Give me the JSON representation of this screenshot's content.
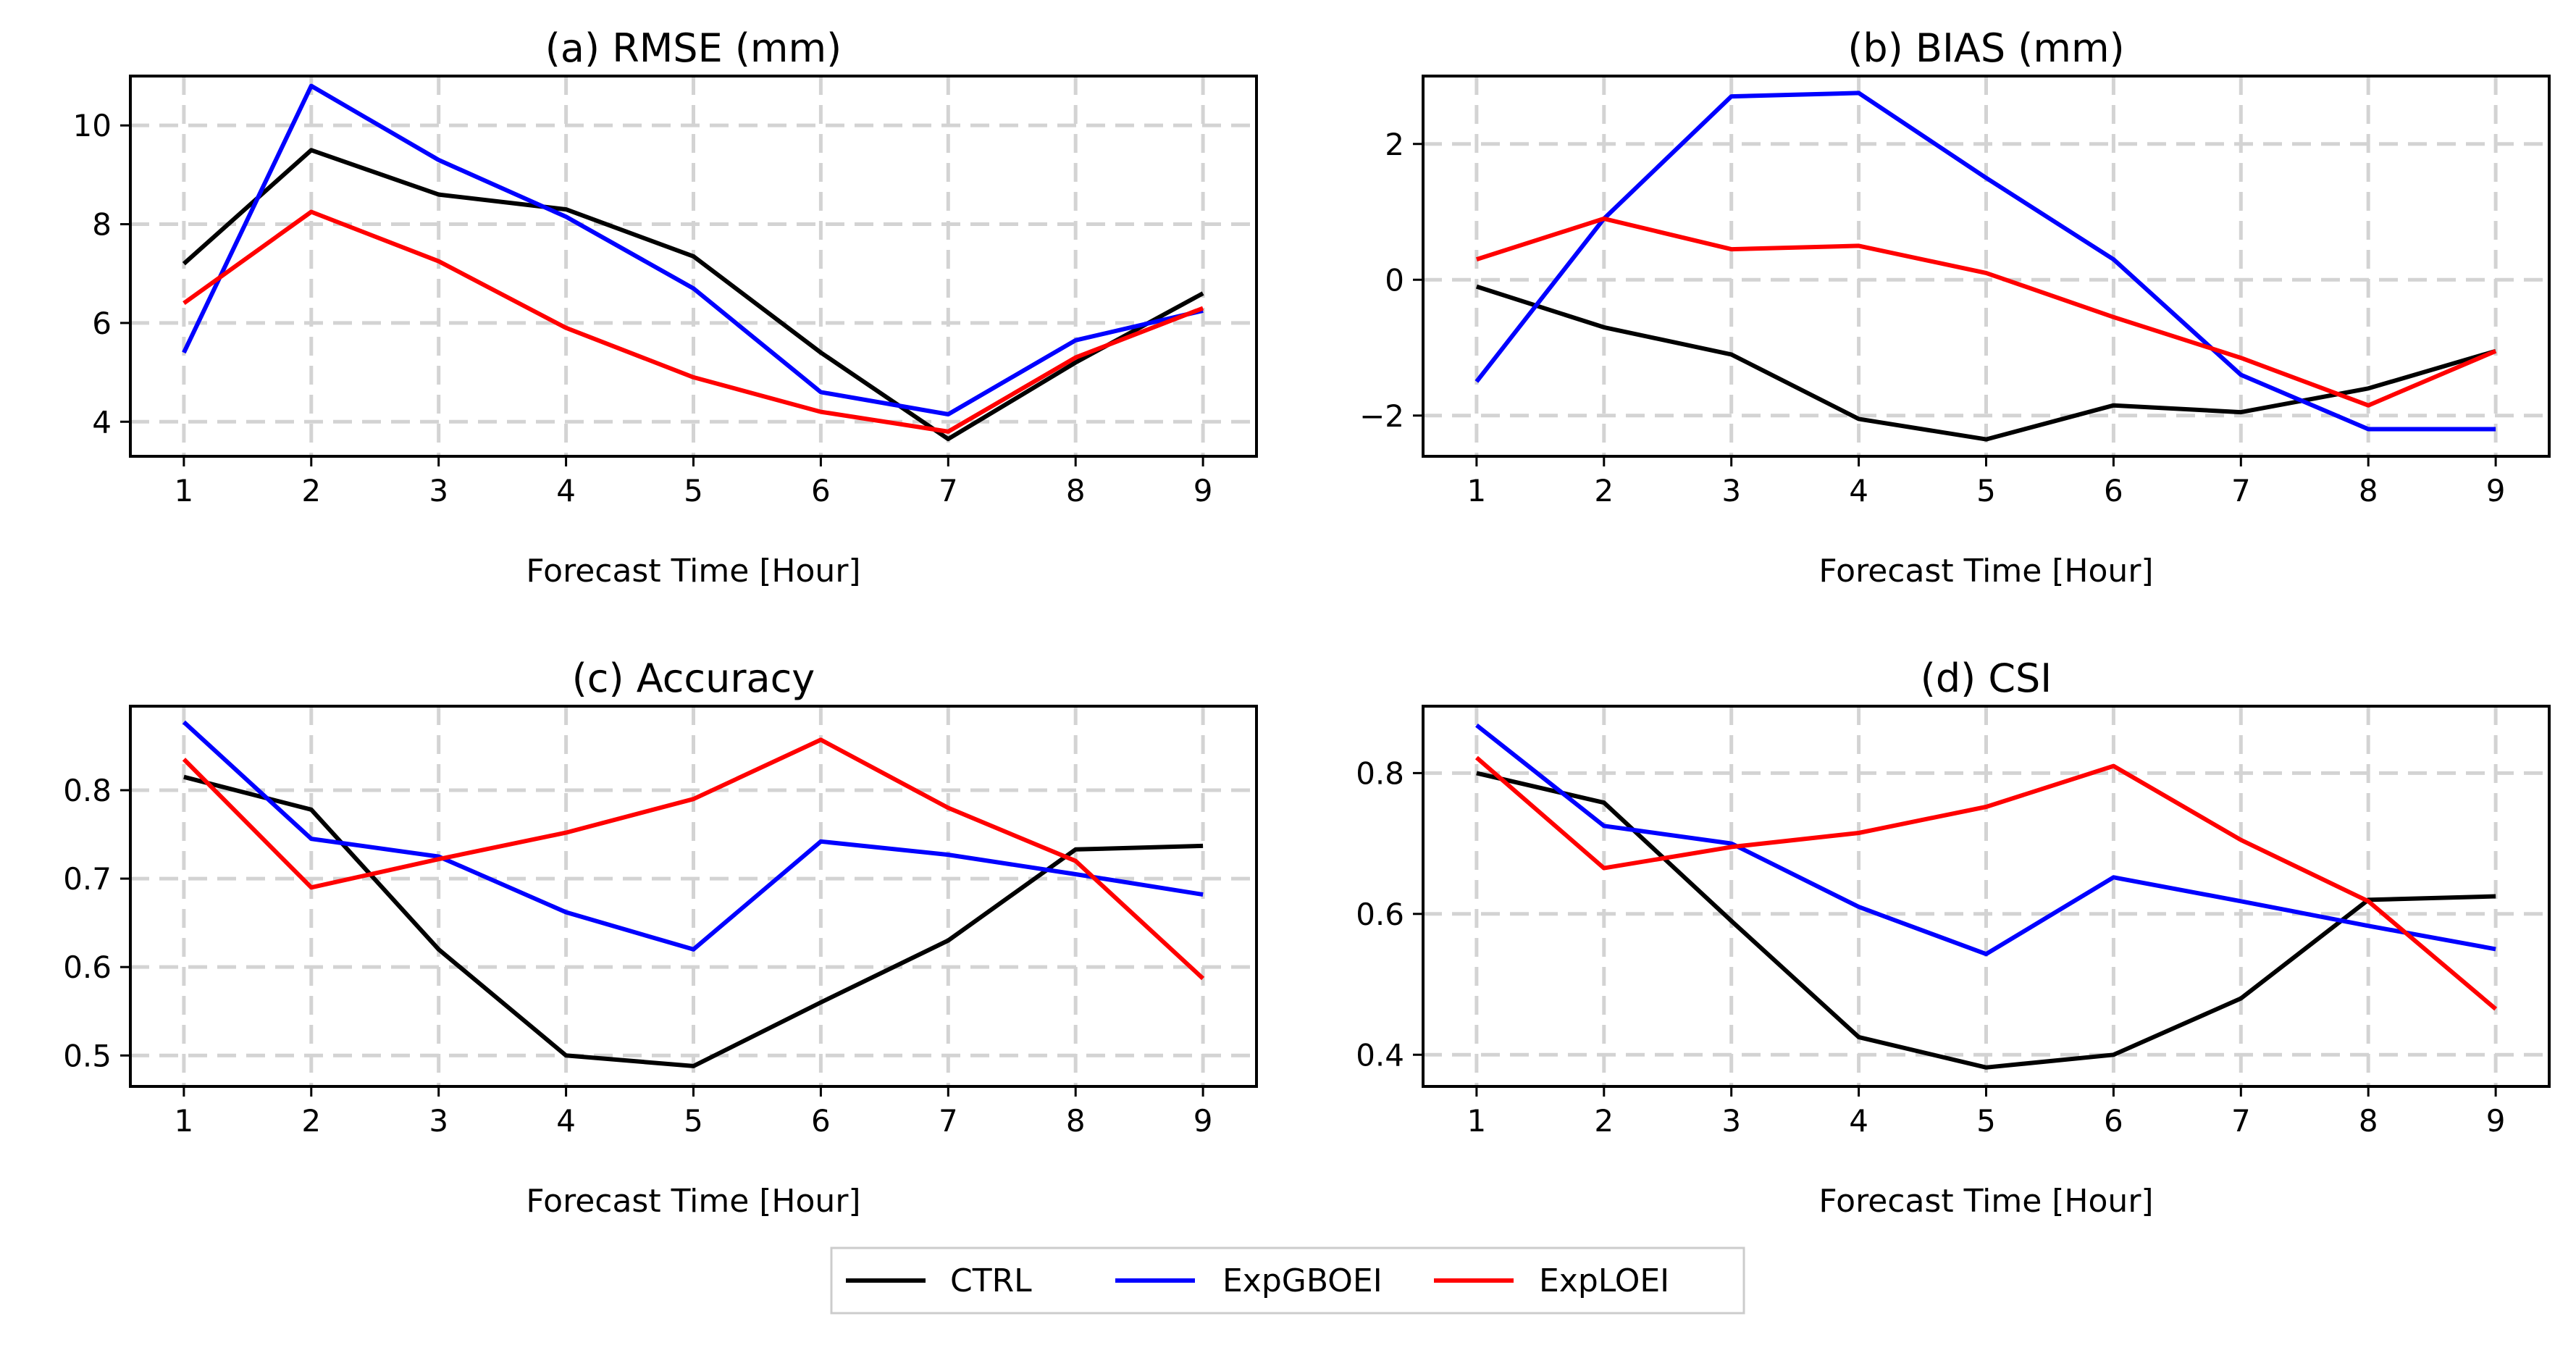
{
  "chart_data": [
    {
      "type": "line",
      "title": "(a) RMSE (mm)",
      "xlabel": "Forecast Time [Hour]",
      "ylabel": "",
      "x": [
        1,
        2,
        3,
        4,
        5,
        6,
        7,
        8,
        9
      ],
      "xticks": [
        "1",
        "2",
        "3",
        "4",
        "5",
        "6",
        "7",
        "8",
        "9"
      ],
      "yticks": [
        4,
        6,
        8,
        10
      ],
      "ytick_labels": [
        "4",
        "6",
        "8",
        "10"
      ],
      "xlim": [
        0.58,
        9.42
      ],
      "ylim": [
        3.3,
        11.0
      ],
      "grid": true,
      "series": [
        {
          "name": "CTRL",
          "values": [
            7.2,
            9.5,
            8.6,
            8.3,
            7.35,
            5.4,
            3.65,
            5.2,
            6.6
          ]
        },
        {
          "name": "ExpGBOEI",
          "values": [
            5.4,
            10.8,
            9.3,
            8.15,
            6.7,
            4.6,
            4.15,
            5.65,
            6.25
          ]
        },
        {
          "name": "ExpLOEI",
          "values": [
            6.4,
            8.25,
            7.25,
            5.9,
            4.9,
            4.2,
            3.8,
            5.3,
            6.3
          ]
        }
      ]
    },
    {
      "type": "line",
      "title": "(b) BIAS (mm)",
      "xlabel": "Forecast Time [Hour]",
      "ylabel": "",
      "x": [
        1,
        2,
        3,
        4,
        5,
        6,
        7,
        8,
        9
      ],
      "xticks": [
        "1",
        "2",
        "3",
        "4",
        "5",
        "6",
        "7",
        "8",
        "9"
      ],
      "yticks": [
        -2,
        0,
        2
      ],
      "ytick_labels": [
        "−2",
        "0",
        "2"
      ],
      "xlim": [
        0.58,
        9.42
      ],
      "ylim": [
        -2.6,
        3.0
      ],
      "grid": true,
      "series": [
        {
          "name": "CTRL",
          "values": [
            -0.1,
            -0.7,
            -1.1,
            -2.05,
            -2.35,
            -1.85,
            -1.95,
            -1.6,
            -1.05
          ]
        },
        {
          "name": "ExpGBOEI",
          "values": [
            -1.5,
            0.9,
            2.7,
            2.75,
            1.5,
            0.3,
            -1.4,
            -2.2,
            -2.2
          ]
        },
        {
          "name": "ExpLOEI",
          "values": [
            0.3,
            0.9,
            0.45,
            0.5,
            0.1,
            -0.55,
            -1.15,
            -1.85,
            -1.05
          ]
        }
      ]
    },
    {
      "type": "line",
      "title": "(c) Accuracy",
      "xlabel": "Forecast Time [Hour]",
      "ylabel": "",
      "x": [
        1,
        2,
        3,
        4,
        5,
        6,
        7,
        8,
        9
      ],
      "xticks": [
        "1",
        "2",
        "3",
        "4",
        "5",
        "6",
        "7",
        "8",
        "9"
      ],
      "yticks": [
        0.5,
        0.6,
        0.7,
        0.8
      ],
      "ytick_labels": [
        "0.5",
        "0.6",
        "0.7",
        "0.8"
      ],
      "xlim": [
        0.58,
        9.42
      ],
      "ylim": [
        0.465,
        0.895
      ],
      "grid": true,
      "series": [
        {
          "name": "CTRL",
          "values": [
            0.815,
            0.778,
            0.62,
            0.5,
            0.488,
            0.56,
            0.63,
            0.733,
            0.737
          ]
        },
        {
          "name": "ExpGBOEI",
          "values": [
            0.877,
            0.745,
            0.725,
            0.662,
            0.62,
            0.742,
            0.727,
            0.705,
            0.682
          ]
        },
        {
          "name": "ExpLOEI",
          "values": [
            0.835,
            0.69,
            0.722,
            0.752,
            0.79,
            0.857,
            0.78,
            0.72,
            0.587
          ]
        }
      ]
    },
    {
      "type": "line",
      "title": "(d) CSI",
      "xlabel": "Forecast Time [Hour]",
      "ylabel": "",
      "x": [
        1,
        2,
        3,
        4,
        5,
        6,
        7,
        8,
        9
      ],
      "xticks": [
        "1",
        "2",
        "3",
        "4",
        "5",
        "6",
        "7",
        "8",
        "9"
      ],
      "yticks": [
        0.4,
        0.6,
        0.8
      ],
      "ytick_labels": [
        "0.4",
        "0.6",
        "0.8"
      ],
      "xlim": [
        0.58,
        9.42
      ],
      "ylim": [
        0.355,
        0.895
      ],
      "grid": true,
      "series": [
        {
          "name": "CTRL",
          "values": [
            0.8,
            0.758,
            0.59,
            0.425,
            0.382,
            0.4,
            0.48,
            0.62,
            0.625
          ]
        },
        {
          "name": "ExpGBOEI",
          "values": [
            0.868,
            0.725,
            0.7,
            0.61,
            0.543,
            0.652,
            0.618,
            0.583,
            0.55
          ]
        },
        {
          "name": "ExpLOEI",
          "values": [
            0.822,
            0.665,
            0.695,
            0.715,
            0.752,
            0.81,
            0.705,
            0.618,
            0.465
          ]
        }
      ]
    }
  ],
  "legend": {
    "placement": "bottom-center",
    "entries": [
      {
        "name": "CTRL",
        "color": "#000000"
      },
      {
        "name": "ExpGBOEI",
        "color": "#0000ff"
      },
      {
        "name": "ExpLOEI",
        "color": "#ff0000"
      }
    ]
  },
  "colors": {
    "CTRL": "#000000",
    "ExpGBOEI": "#0000ff",
    "ExpLOEI": "#ff0000",
    "grid": "#d3d3d3"
  }
}
